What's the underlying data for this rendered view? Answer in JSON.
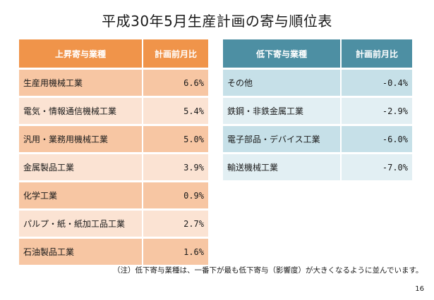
{
  "title": "平成30年5月生産計画の寄与順位表",
  "up_table": {
    "header_name": "上昇寄与業種",
    "header_value": "計画前月比",
    "rows": [
      {
        "name": "生産用機械工業",
        "value": "6.6%"
      },
      {
        "name": "電気・情報通信機械工業",
        "value": "5.4%"
      },
      {
        "name": "汎用・業務用機械工業",
        "value": "5.0%"
      },
      {
        "name": "金属製品工業",
        "value": "3.9%"
      },
      {
        "name": "化学工業",
        "value": "0.9%"
      },
      {
        "name": "パルプ・紙・紙加工品工業",
        "value": "2.7%"
      },
      {
        "name": "石油製品工業",
        "value": "1.6%"
      }
    ]
  },
  "down_table": {
    "header_name": "低下寄与業種",
    "header_value": "計画前月比",
    "rows": [
      {
        "name": "その他",
        "value": "-0.4%"
      },
      {
        "name": "鉄鋼・非鉄金属工業",
        "value": "-2.9%"
      },
      {
        "name": "電子部品・デバイス工業",
        "value": "-6.0%"
      },
      {
        "name": "輸送機械工業",
        "value": "-7.0%"
      }
    ]
  },
  "note": "（注）低下寄与業種は、一番下が最も低下寄与（影響度）が大きくなるように並んでいます。",
  "page_number": "16",
  "colors": {
    "up_header": "#f0944a",
    "up_row_odd": "#f7c6a3",
    "up_row_even": "#fbe3d3",
    "down_header": "#4d8fa3",
    "down_row_odd": "#c6e0e8",
    "down_row_even": "#e2eff3"
  }
}
